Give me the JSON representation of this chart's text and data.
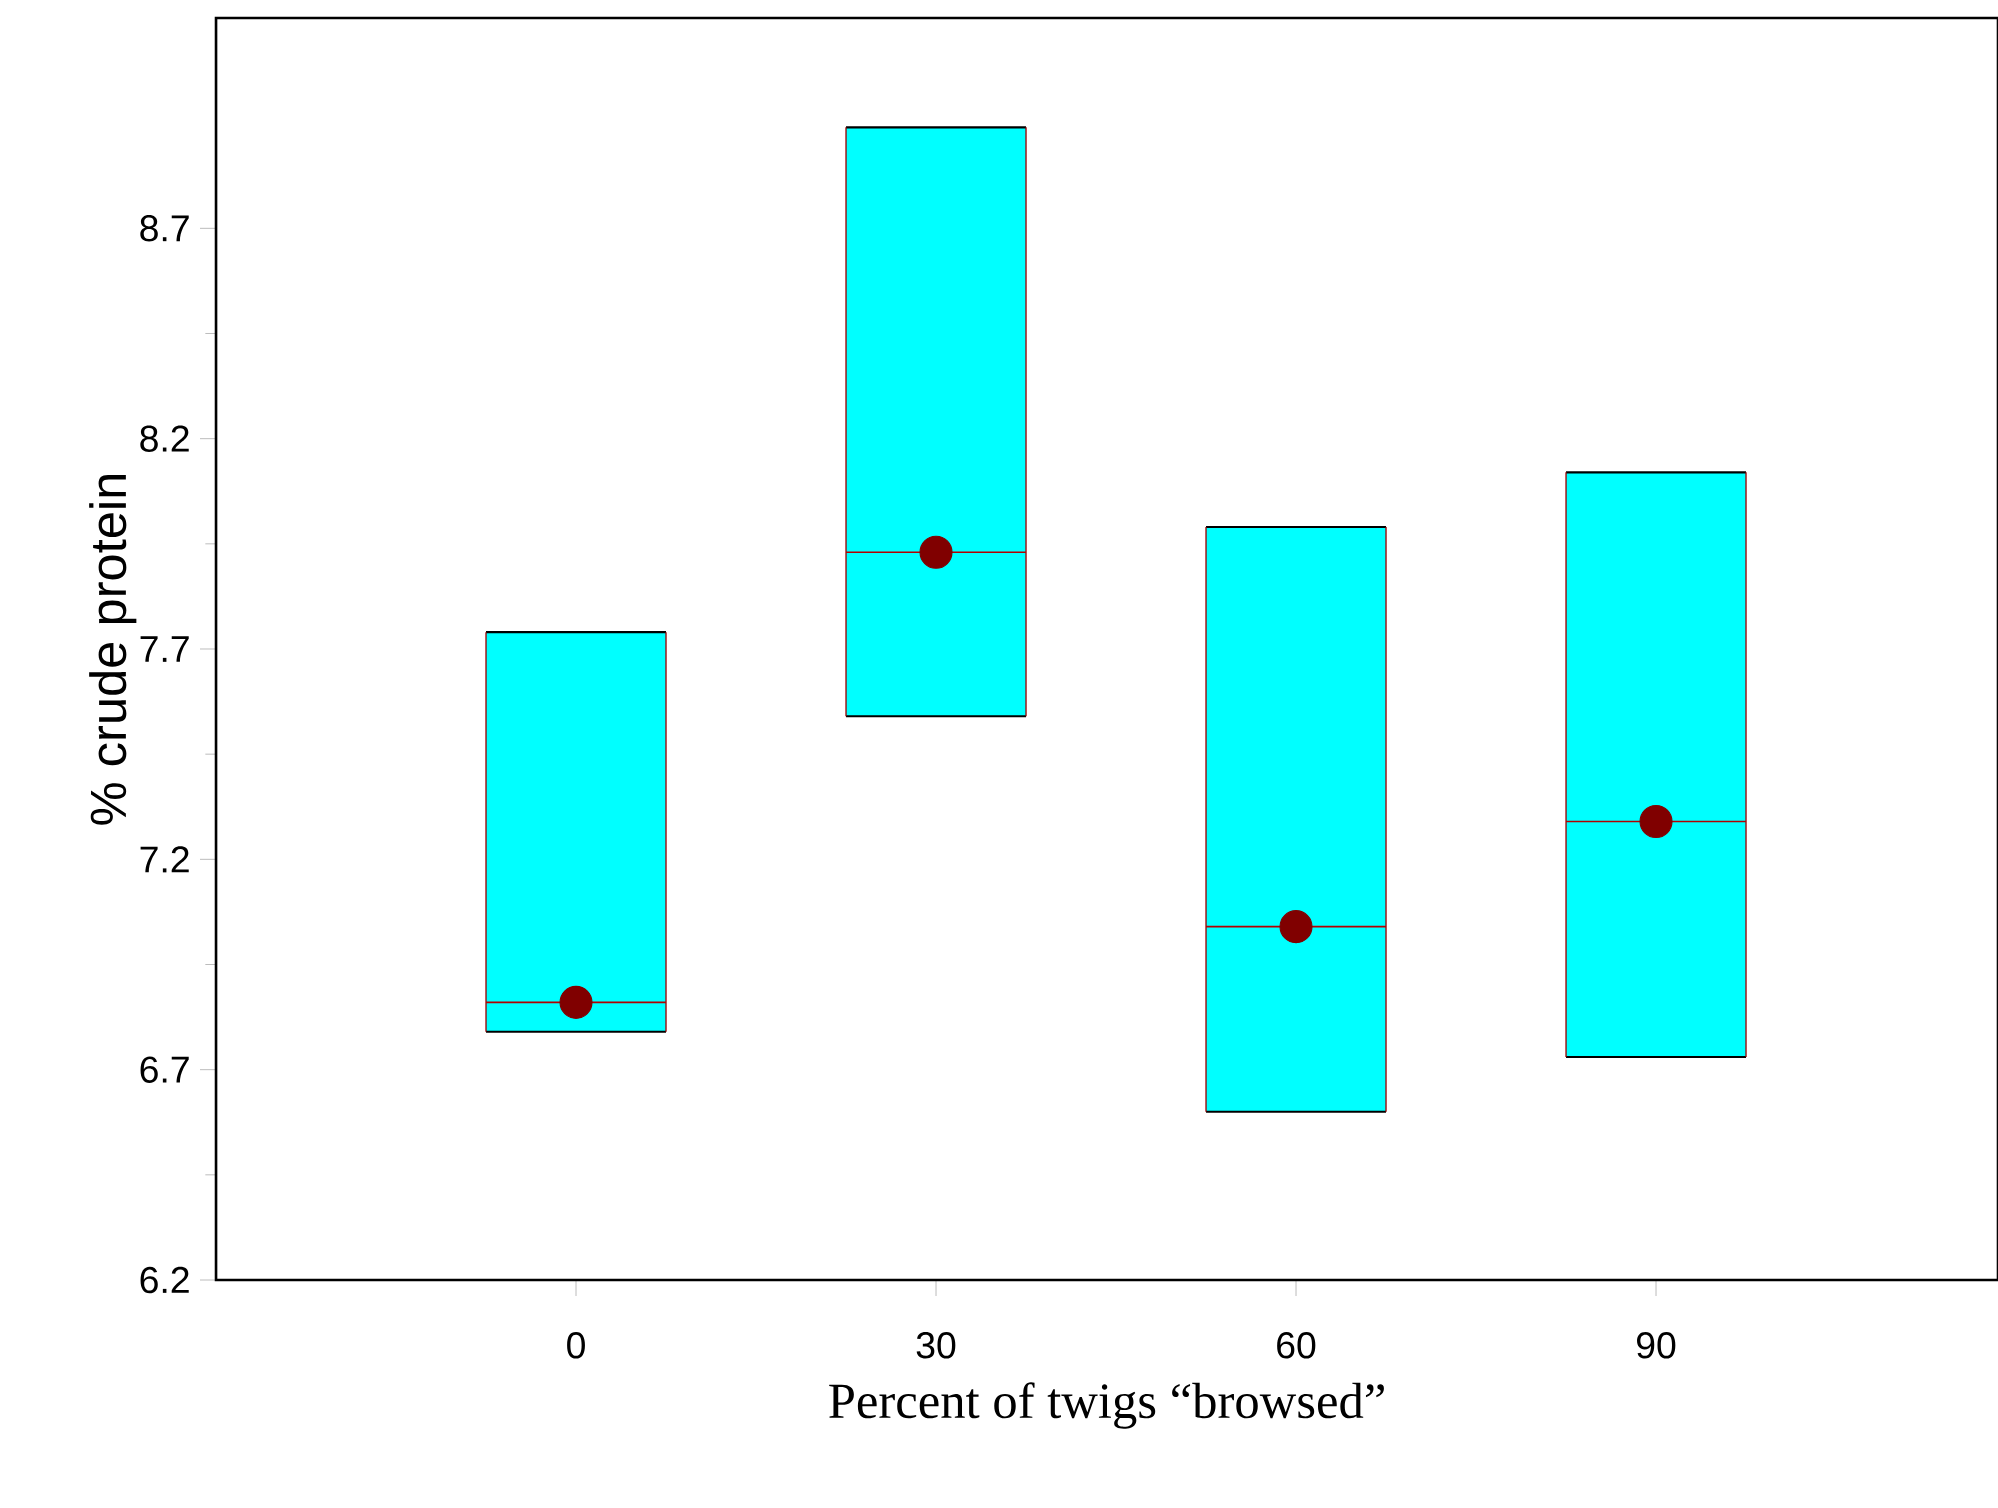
{
  "chart_data": {
    "type": "box",
    "xlabel": "Percent of twigs “browsed”",
    "ylabel": "% crude protein",
    "categories": [
      "0",
      "30",
      "60",
      "90"
    ],
    "series": [
      {
        "color": "#00ffff",
        "boxes": [
          {
            "low": 6.79,
            "q1": 6.79,
            "median": 6.86,
            "q3": 7.74,
            "high": 7.74,
            "mean": 6.86
          },
          {
            "low": 7.54,
            "q1": 7.54,
            "median": 7.93,
            "q3": 8.94,
            "high": 8.94,
            "mean": 7.93
          },
          {
            "low": 6.6,
            "q1": 6.6,
            "median": 7.04,
            "q3": 7.99,
            "high": 7.99,
            "mean": 7.04
          },
          {
            "low": 6.73,
            "q1": 6.73,
            "median": 7.29,
            "q3": 8.12,
            "high": 8.12,
            "mean": 7.29
          }
        ]
      }
    ],
    "ylim": [
      6.2,
      9.2
    ],
    "yticks": [
      6.2,
      6.7,
      7.2,
      7.7,
      8.2,
      8.7
    ]
  }
}
